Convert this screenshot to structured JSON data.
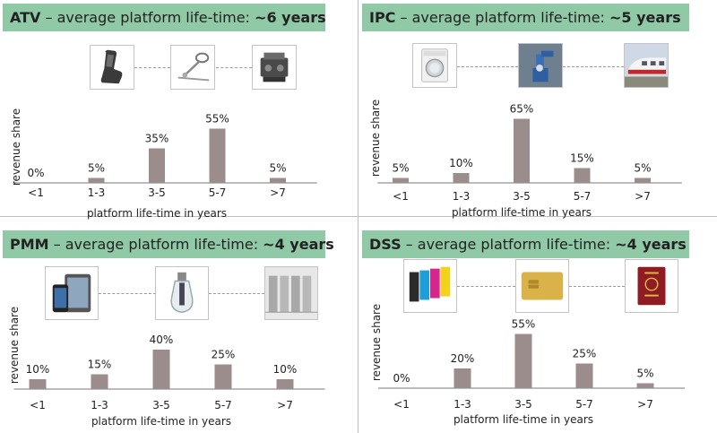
{
  "colors": {
    "bar": "#9c8d8d",
    "banner": "#8fc9a6",
    "axis": "#7a7a7a"
  },
  "panels": [
    {
      "title_prefix": "ATV",
      "title_middle": " – average platform life-time: ",
      "title_value": "~6 years",
      "icons": [
        "car-seat-icon",
        "steering-column-icon",
        "car-engine-icon"
      ]
    },
    {
      "title_prefix": "IPC",
      "title_middle": " – average platform life-time: ",
      "title_value": "~5 years",
      "icons": [
        "washing-machine-icon",
        "industrial-robot-icon",
        "high-speed-train-icon"
      ]
    },
    {
      "title_prefix": "PMM",
      "title_middle": " – average platform life-time: ",
      "title_value": "~4 years",
      "icons": [
        "smartphone-tablet-icon",
        "led-bulb-icon",
        "server-rack-icon"
      ]
    },
    {
      "title_prefix": "DSS",
      "title_middle": " – average platform life-time: ",
      "title_value": "~4 years",
      "icons": [
        "ink-cartridges-icon",
        "chip-card-icon",
        "passport-icon"
      ]
    }
  ],
  "chart_data": [
    {
      "type": "bar",
      "title": "ATV – average platform life-time: ~6 years",
      "categories": [
        "<1",
        "1-3",
        "3-5",
        "5-7",
        ">7"
      ],
      "values": [
        0,
        5,
        35,
        55,
        5
      ],
      "labels": [
        "0%",
        "5%",
        "35%",
        "55%",
        "5%"
      ],
      "xlabel": "platform life-time in years",
      "ylabel": "revenue share",
      "ylim": [
        0,
        70
      ],
      "grid": false
    },
    {
      "type": "bar",
      "title": "IPC – average platform life-time: ~5 years",
      "categories": [
        "<1",
        "1-3",
        "3-5",
        "5-7",
        ">7"
      ],
      "values": [
        5,
        10,
        65,
        15,
        5
      ],
      "labels": [
        "5%",
        "10%",
        "65%",
        "15%",
        "5%"
      ],
      "xlabel": "platform life-time in years",
      "ylabel": "revenue share",
      "ylim": [
        0,
        70
      ],
      "grid": false
    },
    {
      "type": "bar",
      "title": "PMM – average platform life-time: ~4 years",
      "categories": [
        "<1",
        "1-3",
        "3-5",
        "5-7",
        ">7"
      ],
      "values": [
        10,
        15,
        40,
        25,
        10
      ],
      "labels": [
        "10%",
        "15%",
        "40%",
        "25%",
        "10%"
      ],
      "xlabel": "platform life-time in years",
      "ylabel": "revenue share",
      "ylim": [
        0,
        70
      ],
      "grid": false
    },
    {
      "type": "bar",
      "title": "DSS – average platform life-time: ~4 years",
      "categories": [
        "<1",
        "1-3",
        "3-5",
        "5-7",
        ">7"
      ],
      "values": [
        0,
        20,
        55,
        25,
        5
      ],
      "labels": [
        "0%",
        "20%",
        "55%",
        "25%",
        "5%"
      ],
      "xlabel": "platform life-time in years",
      "ylabel": "revenue share",
      "ylim": [
        0,
        70
      ],
      "grid": false
    }
  ]
}
